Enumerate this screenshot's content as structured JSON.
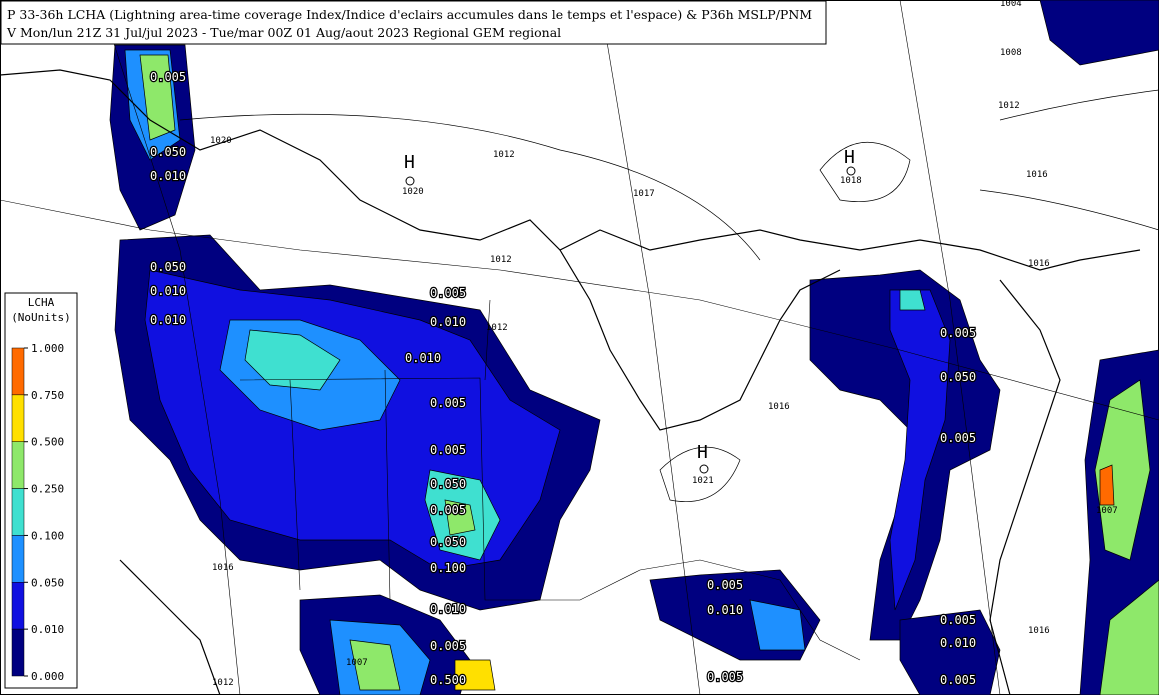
{
  "header": {
    "line1": "P 33-36h LCHA (Lightning area-time coverage Index/Indice d'eclairs accumules dans le temps et l'espace)  & P36h MSLP/PNM",
    "line2": "V Mon/lun 21Z 31 Jul/jul 2023 - Tue/mar 00Z 01 Aug/aout 2023  Regional GEM regional"
  },
  "legend": {
    "title": "LCHA",
    "units": "(NoUnits)",
    "labels": [
      "1.000",
      "0.750",
      "0.500",
      "0.250",
      "0.100",
      "0.050",
      "0.010",
      "0.000"
    ],
    "colors": [
      "#ff6a00",
      "#ffe000",
      "#8ee86a",
      "#3fe0d0",
      "#1e90ff",
      "#1010e0",
      "#000080"
    ]
  },
  "highs": [
    {
      "symbol": "H",
      "pressure": "1020"
    },
    {
      "symbol": "H",
      "pressure": "1018"
    },
    {
      "symbol": "H",
      "pressure": "1021"
    }
  ],
  "isobar_labels": [
    "1020",
    "1012",
    "1017",
    "1012",
    "1012",
    "1008",
    "1004",
    "1012",
    "1016",
    "1016",
    "1016",
    "1012",
    "1016",
    "1007",
    "1016",
    "1007"
  ],
  "lightning_labels": [
    "0.005",
    "0.050",
    "0.010",
    "0.050",
    "0.010",
    "0.010",
    "0.005",
    "0.010",
    "0.010",
    "0.005",
    "0.005",
    "0.050",
    "0.005",
    "0.050",
    "0.100",
    "0.010",
    "0.005",
    "0.500",
    "0.005",
    "0.050",
    "0.005",
    "0.005",
    "0.010",
    "0.005",
    "0.005",
    "0.010",
    "0.005"
  ]
}
